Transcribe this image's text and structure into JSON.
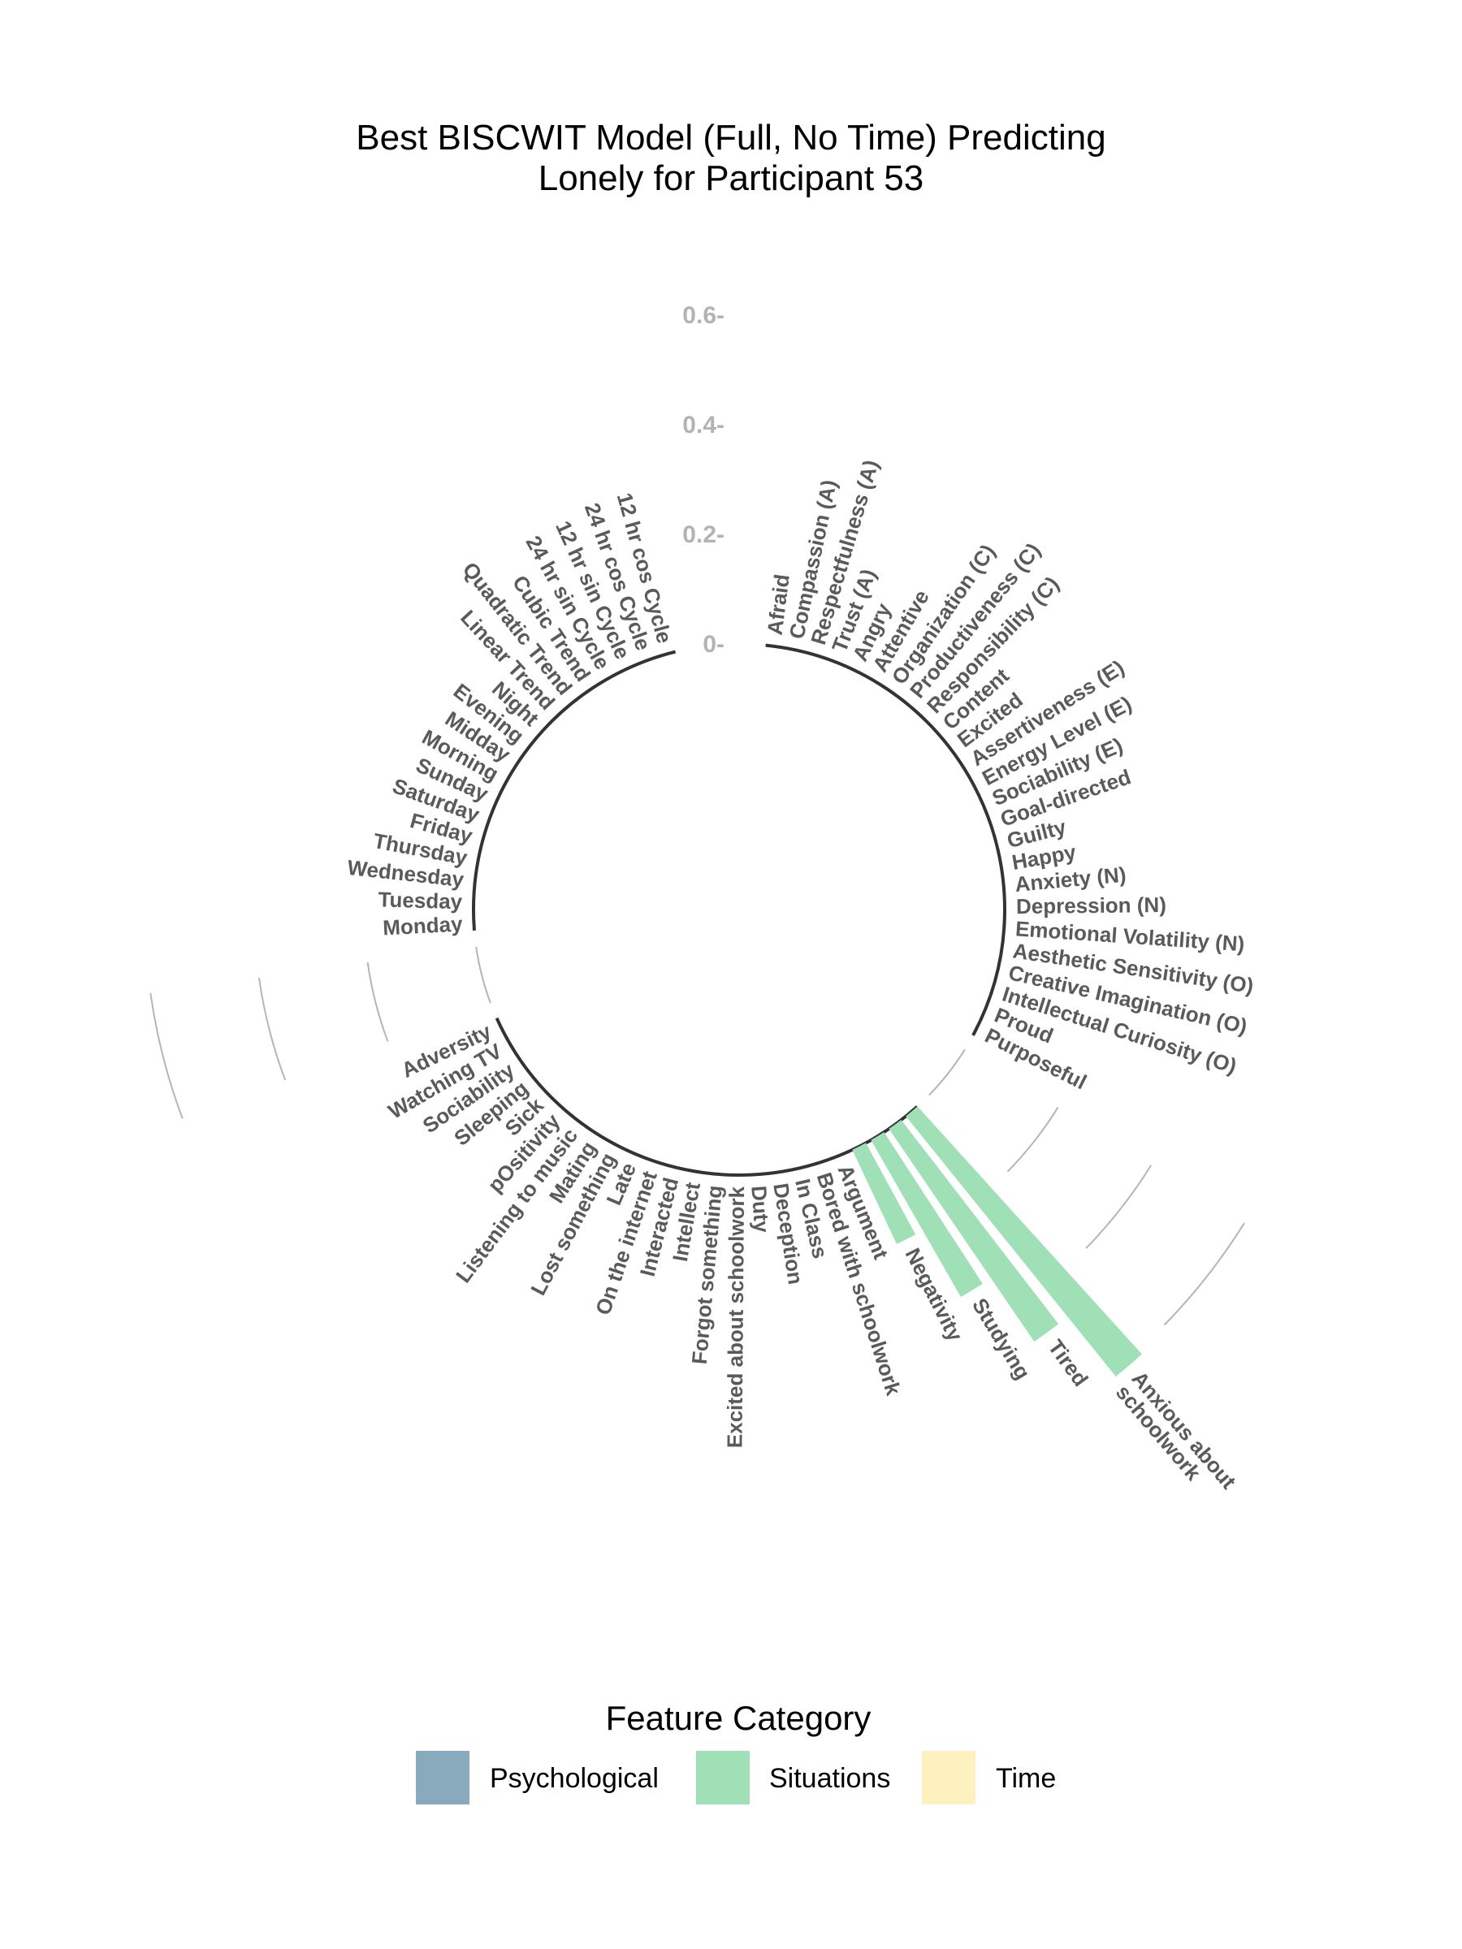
{
  "chart_data": {
    "type": "bar",
    "polar": true,
    "title": [
      "Best BISCWIT Model (Full, No Time) Predicting",
      "Lonely for Participant 53"
    ],
    "yticks": [
      "0-",
      "0.2-",
      "0.4-",
      "0.6-"
    ],
    "ylim": [
      0,
      0.6
    ],
    "groups": [
      {
        "category": "Psychological",
        "features": [
          "Afraid",
          "Compassion (A)",
          "Respectfulness (A)",
          "Trust (A)",
          "Angry",
          "Attentive",
          "Organization (C)",
          "Productiveness (C)",
          "Responsibility (C)",
          "Content",
          "Excited",
          "Assertiveness (E)",
          "Energy Level (E)",
          "Sociability (E)",
          "Goal-directed",
          "Guilty",
          "Happy",
          "Anxiety (N)",
          "Depression (N)",
          "Emotional Volatility (N)",
          "Aesthetic Sensitivity (O)",
          "Creative Imagination (O)",
          "Intellectual Curiosity (O)",
          "Proud",
          "Purposeful"
        ],
        "values": [
          0,
          0,
          0,
          0,
          0,
          0,
          0,
          0,
          0,
          0,
          0,
          0,
          0,
          0,
          0,
          0,
          0,
          0,
          0,
          0,
          0,
          0,
          0,
          0,
          0
        ]
      },
      {
        "category": "Situations",
        "features": [
          "Anxious about schoolwork",
          "Tired",
          "Studying",
          "Negativity",
          "Argument",
          "Bored with schoolwork",
          "In Class",
          "Deception",
          "Duty",
          "Excited about schoolwork",
          "Forgot something",
          "Intellect",
          "Interacted",
          "On the internet",
          "Late",
          "Lost something",
          "Mating",
          "Listening to music",
          "pOsitivity",
          "Sick",
          "Sleeping",
          "Sociability",
          "Watching TV",
          "Adversity"
        ],
        "values": [
          0.61,
          0.47,
          0.33,
          0.19,
          0,
          0,
          0,
          0,
          0,
          0,
          0,
          0,
          0,
          0,
          0,
          0,
          0,
          0,
          0,
          0,
          0,
          0,
          0,
          0
        ]
      },
      {
        "category": "Time",
        "features": [
          "Monday",
          "Tuesday",
          "Wednesday",
          "Thursday",
          "Friday",
          "Saturday",
          "Sunday",
          "Morning",
          "Midday",
          "Evening",
          "Night",
          "Linear Trend",
          "Quadratic Trend",
          "Cubic Trend",
          "24 hr sin Cycle",
          "12 hr sin Cycle",
          "24 hr cos Cycle",
          "12 hr cos Cycle"
        ],
        "values": [
          0,
          0,
          0,
          0,
          0,
          0,
          0,
          0,
          0,
          0,
          0,
          0,
          0,
          0,
          0,
          0,
          0,
          0
        ]
      }
    ],
    "legend": {
      "title": "Feature Category",
      "position": "bottom",
      "entries": [
        {
          "label": "Psychological",
          "color": "#89aabd"
        },
        {
          "label": "Situations",
          "color": "#9fe0b6"
        },
        {
          "label": "Time",
          "color": "#fdf1bf"
        }
      ]
    }
  }
}
